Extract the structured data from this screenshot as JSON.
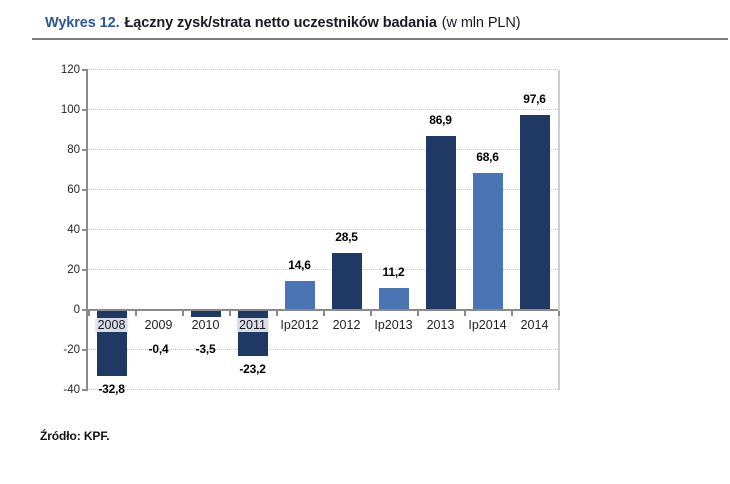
{
  "header": {
    "label": "Wykres 12.",
    "title": "Łączny zysk/strata netto uczestników badania",
    "unit": "(w mln PLN)"
  },
  "chart_data": {
    "type": "bar",
    "title": "Wykres 12. Łączny zysk/strata netto uczestników badania (w mln PLN)",
    "categories": [
      "2008",
      "2009",
      "2010",
      "2011",
      "Ip2012",
      "2012",
      "Ip2013",
      "2013",
      "Ip2014",
      "2014"
    ],
    "values": [
      -32.8,
      -0.4,
      -3.5,
      -23.2,
      14.6,
      28.5,
      11.2,
      86.9,
      68.6,
      97.6
    ],
    "value_labels": [
      "-32,8",
      "-0,4",
      "-3,5",
      "-23,2",
      "14,6",
      "28,5",
      "11,2",
      "86,9",
      "68,6",
      "97,6"
    ],
    "ylabel": "",
    "xlabel": "",
    "ylim": [
      -40,
      120
    ],
    "yticks": [
      120,
      100,
      80,
      60,
      40,
      20,
      0,
      -20,
      -40
    ],
    "grid": "horizontal-dotted",
    "legend_position": "none",
    "bar_color_dark": "#1F3864",
    "bar_color_light": "#4A74B4",
    "color_per_bar": [
      "dark",
      "dark",
      "dark",
      "dark",
      "light",
      "dark",
      "light",
      "dark",
      "light",
      "dark"
    ],
    "highlighted_categories": [
      "2008",
      "2011"
    ]
  },
  "footer": {
    "source": "Źródło: KPF."
  },
  "colors": {
    "title_accent": "#2A5798",
    "title_text": "#1a1a22",
    "axis": "#8a8a8a",
    "grid": "#c9c9c9"
  }
}
